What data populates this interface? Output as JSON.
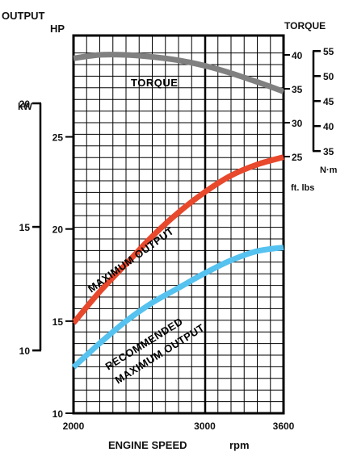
{
  "chart_data": {
    "type": "line",
    "xlabel": "ENGINE SPEED",
    "xunit": "rpm",
    "x_ticks": [
      2000,
      3000,
      3600
    ],
    "xlim": [
      2000,
      3600
    ],
    "left_axis": {
      "label_line1": "OUTPUT",
      "label_line2": "HP",
      "ylim": [
        10,
        30.5
      ],
      "ticks": [
        10,
        15,
        20,
        25
      ]
    },
    "kw_axis": {
      "label": "kW",
      "ticks": [
        10,
        15,
        20
      ]
    },
    "right_axis": {
      "label": "TORQUE",
      "ftlbs_unit": "ft. lbs",
      "ftlbs_ticks": [
        25,
        30,
        35,
        40
      ],
      "nm_unit": "N·m",
      "nm_ticks": [
        35,
        40,
        45,
        50,
        55
      ]
    },
    "grid": true,
    "series": [
      {
        "name": "TORQUE",
        "label_line1": "TORQUE",
        "axis": "torque_ftlbs",
        "color": "#808080",
        "x": [
          2000,
          2200,
          2400,
          2600,
          2800,
          3000,
          3200,
          3400,
          3600
        ],
        "y": [
          39.5,
          40.0,
          40.0,
          39.7,
          39.2,
          38.4,
          37.3,
          36.0,
          34.6
        ]
      },
      {
        "name": "MAXIMUM OUTPUT",
        "label_line1": "MAXIMUM OUTPUT",
        "axis": "hp",
        "color": "#e8482c",
        "x": [
          2000,
          2200,
          2400,
          2600,
          2800,
          3000,
          3200,
          3400,
          3600
        ],
        "y": [
          14.9,
          16.6,
          18.1,
          19.6,
          20.9,
          22.0,
          22.9,
          23.5,
          23.9
        ]
      },
      {
        "name": "RECOMMENDED MAXIMUM OUTPUT",
        "label_line1": "RECOMMENDED",
        "label_line2": "MAXIMUM OUTPUT",
        "axis": "hp",
        "color": "#56c2ef",
        "x": [
          2000,
          2200,
          2400,
          2600,
          2800,
          3000,
          3200,
          3400,
          3600
        ],
        "y": [
          12.5,
          13.8,
          15.0,
          16.0,
          16.8,
          17.6,
          18.3,
          18.8,
          19.0
        ]
      }
    ]
  }
}
